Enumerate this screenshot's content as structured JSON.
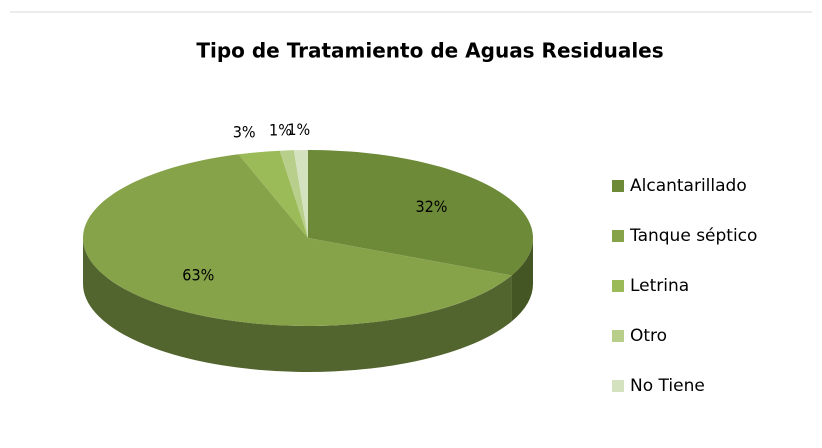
{
  "chart_data": {
    "type": "pie",
    "title": "Tipo de Tratamiento de Aguas Residuales",
    "categories": [
      "Alcantarillado",
      "Tanque séptico",
      "Letrina",
      "Otro",
      "No Tiene"
    ],
    "values": [
      32,
      63,
      3,
      1,
      1
    ],
    "value_labels": [
      "32%",
      "63%",
      "3%",
      "1%",
      "1%"
    ],
    "colors": [
      "#6d8a38",
      "#86a34a",
      "#9bbb59",
      "#b8cf8c",
      "#d5e2c0"
    ],
    "legend": "right"
  }
}
